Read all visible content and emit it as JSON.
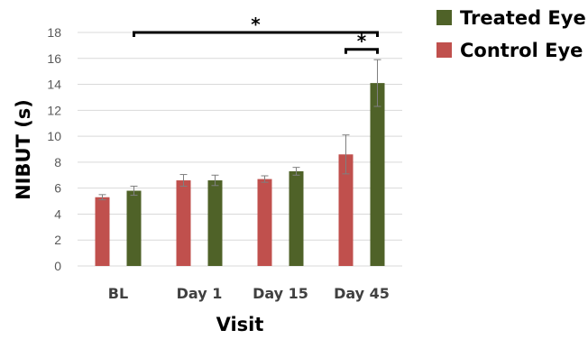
{
  "chart_data": {
    "type": "bar",
    "title": "",
    "xlabel": "Visit",
    "ylabel": "NIBUT (s)",
    "ylim": [
      0,
      18
    ],
    "yticks": [
      0,
      2,
      4,
      6,
      8,
      10,
      12,
      14,
      16,
      18
    ],
    "grid": true,
    "legend_position": "top-right",
    "categories": [
      "BL",
      "Day 1",
      "Day 15",
      "Day 45"
    ],
    "series": [
      {
        "name": "Control Eye",
        "color": "#c0504d",
        "values": [
          5.3,
          6.6,
          6.7,
          8.6
        ],
        "errors": [
          0.2,
          0.45,
          0.25,
          1.5
        ]
      },
      {
        "name": "Treated Eye",
        "color": "#4f6228",
        "values": [
          5.8,
          6.6,
          7.3,
          14.1
        ],
        "errors": [
          0.35,
          0.4,
          0.3,
          1.8
        ]
      }
    ],
    "legend_order": [
      1,
      0
    ],
    "significance": [
      {
        "label": "*",
        "from_category": 0,
        "from_series": 1,
        "to_category": 3,
        "to_series": 1,
        "y": 18
      },
      {
        "label": "*",
        "from_category": 3,
        "from_series": 0,
        "to_category": 3,
        "to_series": 1,
        "y": 16.7
      }
    ]
  }
}
